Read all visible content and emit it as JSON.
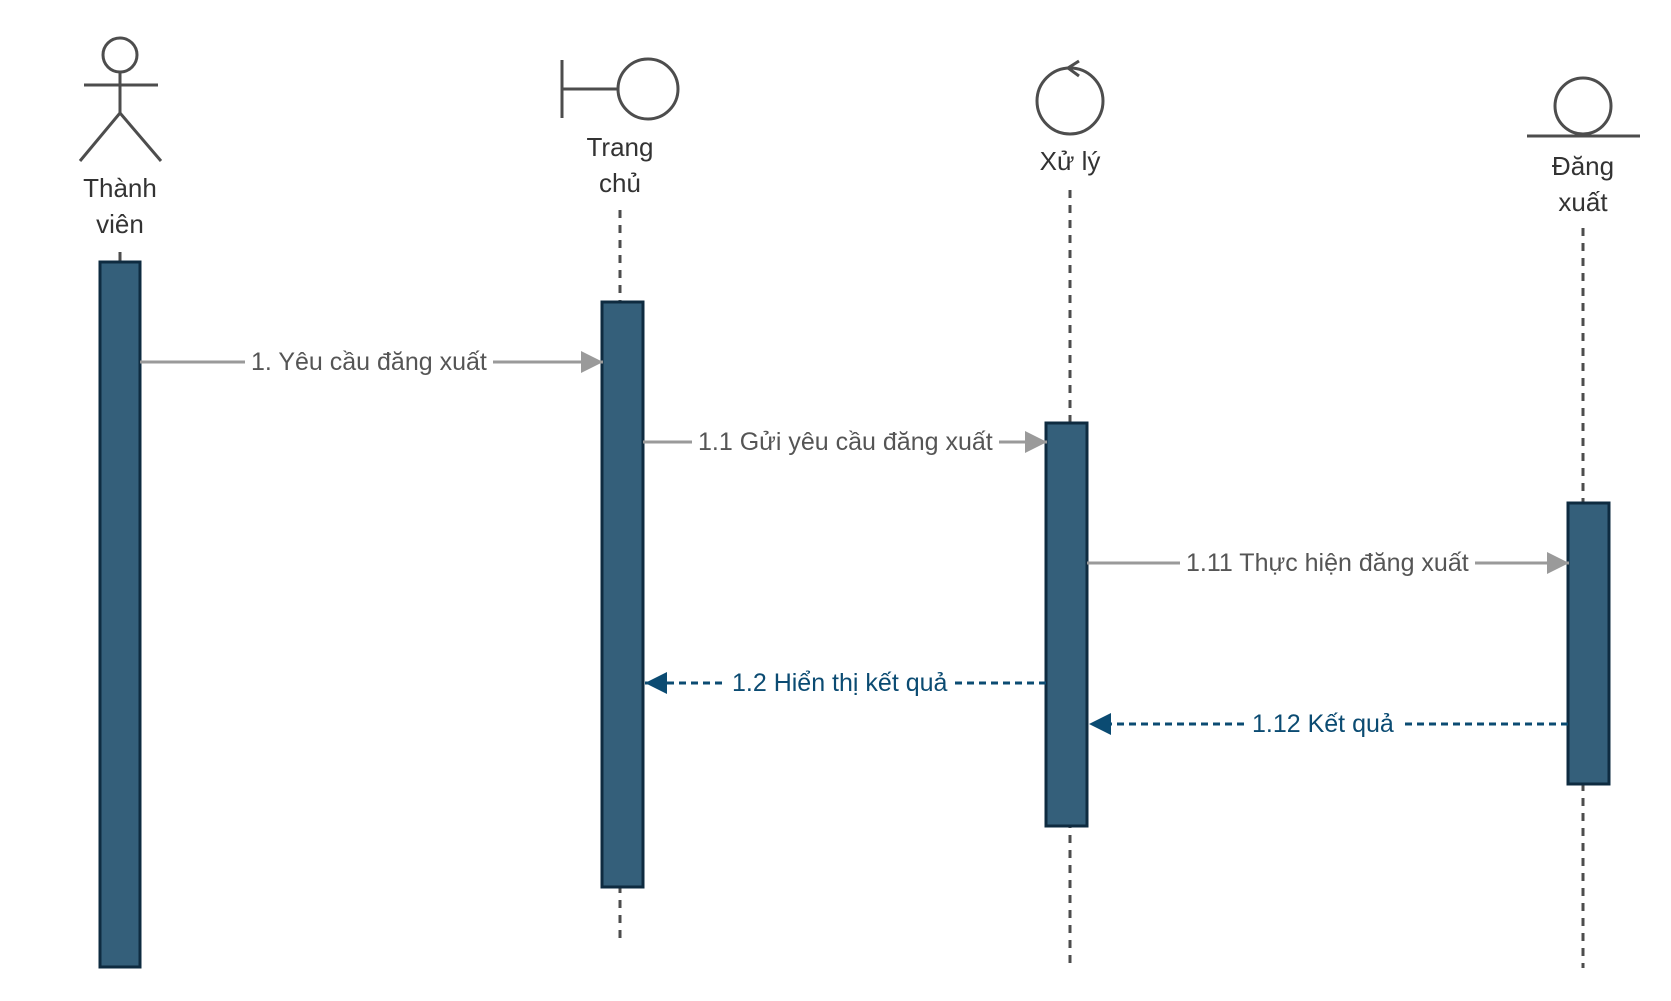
{
  "diagram": {
    "type": "sequence",
    "colors": {
      "stroke": "#4d4d4d",
      "activation_fill": "#345f7a",
      "activation_border": "#0e2b40",
      "sync_arrow": "#9a9a9a",
      "sync_text": "#555555",
      "return_arrow": "#0b4b72",
      "return_text": "#0b4b72"
    },
    "participants": [
      {
        "id": "member",
        "icon": "actor-icon",
        "label": "Thành viên",
        "line1": "Thành",
        "line2": "viên"
      },
      {
        "id": "home",
        "icon": "boundary-icon",
        "label": "Trang chủ",
        "line1": "Trang",
        "line2": "chủ"
      },
      {
        "id": "process",
        "icon": "control-icon",
        "label": "Xử lý",
        "line1": "Xử lý",
        "line2": ""
      },
      {
        "id": "logout",
        "icon": "entity-icon",
        "label": "Đăng xuất",
        "line1": "Đăng",
        "line2": "xuất"
      }
    ],
    "messages": [
      {
        "id": "m1",
        "label": "1. Yêu cầu đăng xuất",
        "from": "member",
        "to": "home",
        "kind": "sync"
      },
      {
        "id": "m2",
        "label": "1.1 Gửi yêu cầu đăng xuất",
        "from": "home",
        "to": "process",
        "kind": "sync"
      },
      {
        "id": "m3",
        "label": "1.11 Thực hiện đăng xuất",
        "from": "process",
        "to": "logout",
        "kind": "sync"
      },
      {
        "id": "m4",
        "label": "1.2 Hiển thị kết quả",
        "from": "process",
        "to": "home",
        "kind": "return"
      },
      {
        "id": "m5",
        "label": "1.12 Kết quả",
        "from": "logout",
        "to": "process",
        "kind": "return"
      }
    ]
  }
}
